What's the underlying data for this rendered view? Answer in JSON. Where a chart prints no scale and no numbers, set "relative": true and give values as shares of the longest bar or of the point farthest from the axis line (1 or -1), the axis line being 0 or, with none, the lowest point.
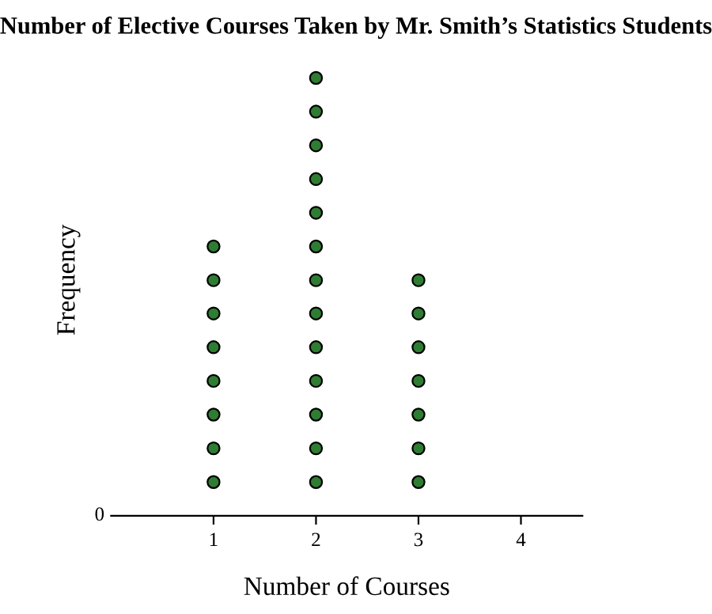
{
  "chart_data": {
    "type": "scatter",
    "title": "Number of Elective Courses Taken by Mr. Smith’s Statistics Students",
    "xlabel": "Number of Courses",
    "ylabel": "Frequency",
    "relative": true,
    "annotations": [
      "0"
    ],
    "series": [
      {
        "color": "#2e7d32",
        "x": [
          1,
          1,
          1,
          1,
          1,
          1,
          1,
          1,
          2,
          2,
          2,
          2,
          2,
          2,
          2,
          2,
          2,
          2,
          2,
          2,
          2,
          3,
          3,
          3,
          3,
          3,
          3,
          3
        ],
        "values": [
          0.077,
          0.154,
          0.231,
          0.308,
          0.385,
          0.462,
          0.538,
          0.615,
          0.077,
          0.154,
          0.231,
          0.308,
          0.385,
          0.462,
          0.538,
          0.615,
          0.692,
          0.769,
          0.846,
          0.923,
          1,
          0.077,
          0.154,
          0.231,
          0.308,
          0.385,
          0.462,
          0.538
        ]
      }
    ],
    "xlim": [
      0,
      4.6
    ],
    "xticks": [
      1,
      2,
      3,
      4
    ],
    "marker": "circle",
    "grid": false,
    "legend": false
  }
}
